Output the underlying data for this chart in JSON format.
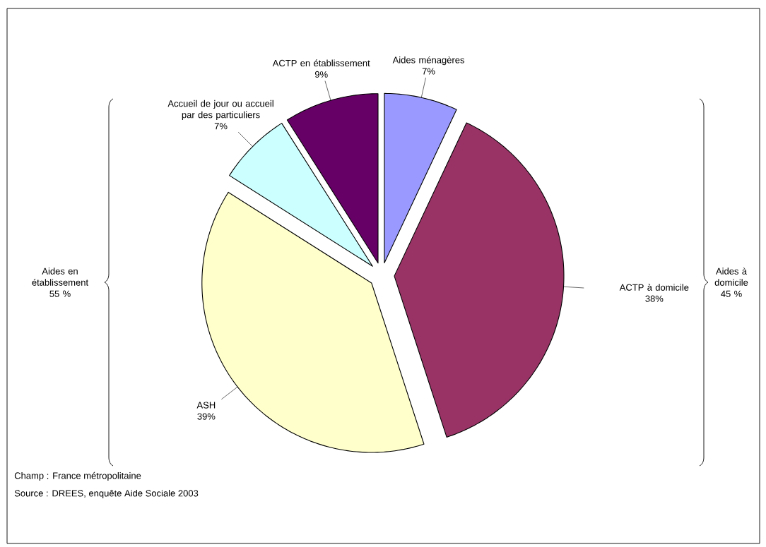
{
  "chart_data": {
    "type": "pie",
    "categories": [
      "Aides ménagères",
      "ACTP à domicile",
      "ASH",
      "Accueil de jour ou accueil par des particuliers",
      "ACTP en établissement"
    ],
    "values": [
      7,
      38,
      39,
      7,
      9
    ],
    "value_labels": [
      "7%",
      "38%",
      "39%",
      "7%",
      "9%"
    ],
    "colors": [
      "#9999ff",
      "#993366",
      "#ffffcc",
      "#ccffff",
      "#660066"
    ],
    "annotations": [
      "Aides en établissement 55 %",
      "Aides à domicile 45 %",
      "Champ : France métropolitaine",
      "Source : DREES, enquête Aide Sociale 2003"
    ]
  }
}
